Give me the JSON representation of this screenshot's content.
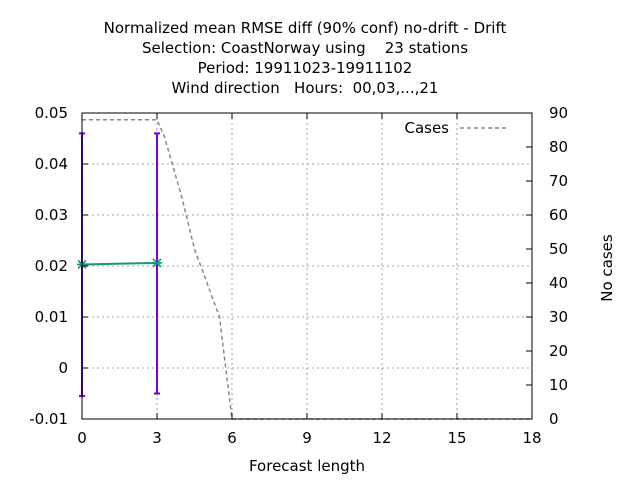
{
  "chart_data": {
    "type": "line",
    "title_lines": [
      "Normalized mean RMSE diff (90% conf) no-drift - Drift",
      "Selection: CoastNorway using    23 stations",
      "Period: 19911023-19911102",
      "Wind direction   Hours:  00,03,...,21"
    ],
    "xlabel": "Forecast length",
    "ylabel": "",
    "y2label": "No cases",
    "xlim": [
      0,
      18
    ],
    "ylim": [
      -0.01,
      0.05
    ],
    "y2lim": [
      0,
      90
    ],
    "x_ticks": [
      0,
      3,
      6,
      9,
      12,
      15,
      18
    ],
    "y_ticks": [
      "-0.01",
      "0",
      "0.01",
      "0.02",
      "0.03",
      "0.04",
      "0.05"
    ],
    "y2_ticks": [
      0,
      10,
      20,
      30,
      40,
      50,
      60,
      70,
      80,
      90
    ],
    "grid": true,
    "legend": {
      "position": "top-right",
      "entries": [
        "Cases"
      ]
    },
    "series": [
      {
        "name": "",
        "color": "#7a00d4",
        "kind": "errorbar",
        "x": [
          0,
          3
        ],
        "y": [
          0.0203,
          0.0206
        ],
        "ylow": [
          -0.0055,
          -0.005
        ],
        "yhigh": [
          0.046,
          0.046
        ]
      },
      {
        "name": "",
        "color": "#119977",
        "kind": "line-points",
        "x": [
          0,
          3
        ],
        "y": [
          0.0203,
          0.0206
        ]
      },
      {
        "name": "Cases",
        "color": "#888888",
        "kind": "dashed-line",
        "axis": "y2",
        "x": [
          0,
          1,
          2,
          3,
          3.3,
          4,
          4.5,
          5,
          5.5,
          6,
          9,
          12,
          15,
          18
        ],
        "y": [
          88,
          88,
          88,
          88,
          83,
          65,
          50,
          40,
          30,
          0,
          0,
          0,
          0,
          0
        ]
      }
    ]
  }
}
